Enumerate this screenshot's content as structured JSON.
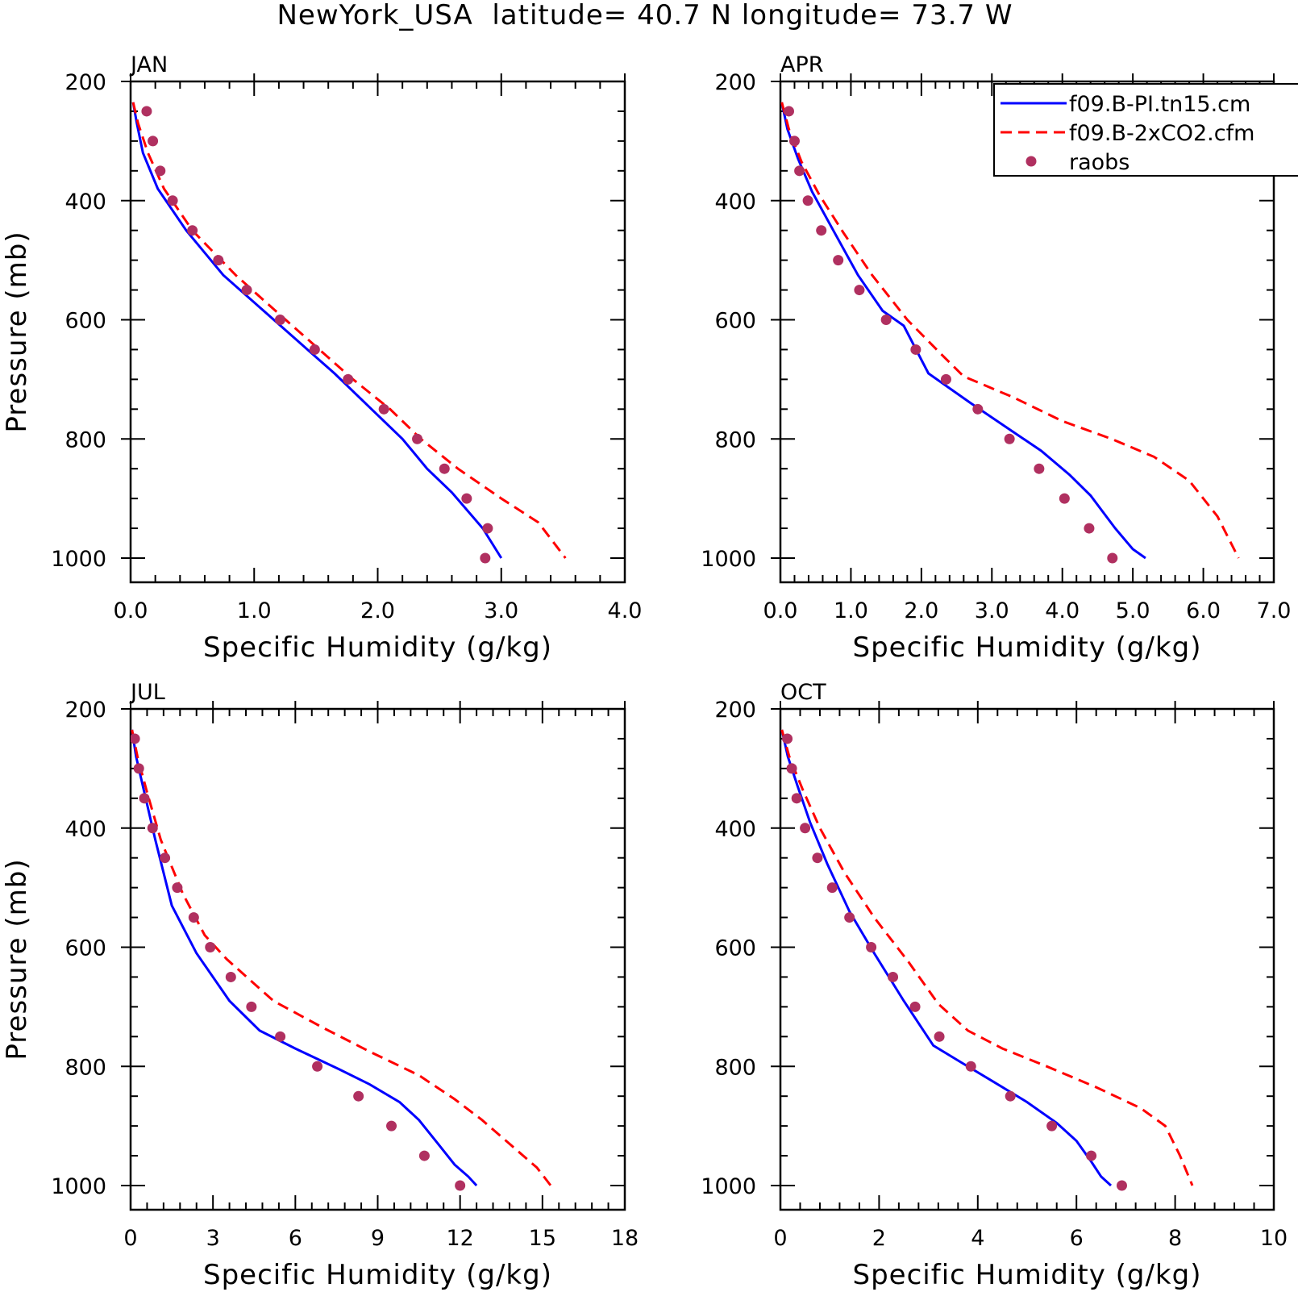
{
  "figure": {
    "title": "NewYork_USA  latitude= 40.7 N longitude= 73.7 W"
  },
  "legend": {
    "items": [
      {
        "label": "f09.B-PI.tn15.cm",
        "color": "#0000ff",
        "style": "solid"
      },
      {
        "label": "f09.B-2xCO2.cfm",
        "color": "#ff0000",
        "style": "dashed"
      },
      {
        "label": "raobs",
        "color": "#b03060",
        "style": "marker"
      }
    ]
  },
  "chart_data": [
    {
      "type": "line",
      "title": "JAN",
      "xlabel": "Specific Humidity (g/kg)",
      "ylabel": "Pressure (mb)",
      "xlim": [
        0,
        4
      ],
      "ylim": [
        1000,
        200
      ],
      "xticks": [
        "0.0",
        "1.0",
        "2.0",
        "3.0",
        "4.0"
      ],
      "yticks": [
        "200",
        "400",
        "600",
        "800",
        "1000"
      ],
      "series": [
        {
          "name": "f09.B-PI.tn15.cm",
          "color": "#0000ff",
          "style": "solid",
          "x": [
            0.02,
            0.05,
            0.1,
            0.22,
            0.45,
            0.75,
            1.05,
            1.35,
            1.65,
            1.95,
            2.2,
            2.4,
            2.6,
            2.85,
            3.0
          ],
          "y": [
            235,
            270,
            320,
            380,
            450,
            525,
            580,
            635,
            690,
            750,
            800,
            850,
            890,
            950,
            1000
          ]
        },
        {
          "name": "f09.B-2xCO2.cfm",
          "color": "#ff0000",
          "style": "dashed",
          "x": [
            0.02,
            0.06,
            0.14,
            0.27,
            0.5,
            0.85,
            1.2,
            1.5,
            1.8,
            2.1,
            2.35,
            2.65,
            3.0,
            3.3,
            3.52
          ],
          "y": [
            235,
            270,
            320,
            380,
            450,
            525,
            590,
            645,
            700,
            750,
            800,
            850,
            900,
            940,
            1000
          ]
        },
        {
          "name": "raobs",
          "color": "#b03060",
          "style": "marker",
          "x": [
            0.13,
            0.18,
            0.24,
            0.34,
            0.5,
            0.71,
            0.94,
            1.21,
            1.49,
            1.76,
            2.05,
            2.32,
            2.54,
            2.72,
            2.89,
            2.87
          ],
          "y": [
            250,
            300,
            350,
            400,
            450,
            500,
            550,
            600,
            650,
            700,
            750,
            800,
            850,
            900,
            950,
            1000
          ]
        }
      ]
    },
    {
      "type": "line",
      "title": "APR",
      "xlabel": "Specific Humidity (g/kg)",
      "ylabel": "",
      "xlim": [
        0,
        7
      ],
      "ylim": [
        1000,
        200
      ],
      "xticks": [
        "0.0",
        "1.0",
        "2.0",
        "3.0",
        "4.0",
        "5.0",
        "6.0",
        "7.0"
      ],
      "yticks": [
        "200",
        "400",
        "600",
        "800",
        "1000"
      ],
      "series": [
        {
          "name": "f09.B-PI.tn15.cm",
          "color": "#0000ff",
          "style": "solid",
          "x": [
            0.02,
            0.1,
            0.25,
            0.45,
            0.75,
            1.1,
            1.45,
            1.75,
            2.1,
            2.7,
            3.2,
            3.7,
            4.1,
            4.4,
            4.75,
            5.0,
            5.18
          ],
          "y": [
            235,
            280,
            330,
            385,
            450,
            525,
            585,
            610,
            690,
            740,
            780,
            820,
            860,
            895,
            950,
            985,
            1000
          ]
        },
        {
          "name": "f09.B-2xCO2.cfm",
          "color": "#ff0000",
          "style": "dashed",
          "x": [
            0.02,
            0.12,
            0.3,
            0.55,
            0.9,
            1.3,
            1.8,
            2.3,
            2.6,
            3.3,
            4.0,
            4.7,
            5.3,
            5.8,
            6.2,
            6.5
          ],
          "y": [
            235,
            280,
            335,
            390,
            455,
            525,
            600,
            660,
            695,
            730,
            770,
            800,
            830,
            870,
            930,
            1000
          ]
        },
        {
          "name": "raobs",
          "color": "#b03060",
          "style": "marker",
          "x": [
            0.12,
            0.2,
            0.27,
            0.39,
            0.58,
            0.82,
            1.12,
            1.5,
            1.92,
            2.35,
            2.8,
            3.25,
            3.67,
            4.03,
            4.38,
            4.71
          ],
          "y": [
            250,
            300,
            350,
            400,
            450,
            500,
            550,
            600,
            650,
            700,
            750,
            800,
            850,
            900,
            950,
            1000
          ]
        }
      ]
    },
    {
      "type": "line",
      "title": "JUL",
      "xlabel": "Specific Humidity (g/kg)",
      "ylabel": "Pressure (mb)",
      "xlim": [
        0,
        18
      ],
      "ylim": [
        1000,
        200
      ],
      "xticks": [
        "0",
        "3",
        "6",
        "9",
        "12",
        "15",
        "18"
      ],
      "yticks": [
        "200",
        "400",
        "600",
        "800",
        "1000"
      ],
      "series": [
        {
          "name": "f09.B-PI.tn15.cm",
          "color": "#0000ff",
          "style": "solid",
          "x": [
            0.05,
            0.2,
            0.5,
            0.9,
            1.5,
            2.4,
            3.6,
            4.7,
            6.0,
            7.6,
            8.7,
            9.8,
            10.5,
            11.2,
            11.8,
            12.3,
            12.6
          ],
          "y": [
            235,
            280,
            340,
            420,
            530,
            610,
            690,
            740,
            770,
            805,
            830,
            860,
            890,
            930,
            965,
            985,
            1000
          ]
        },
        {
          "name": "f09.B-2xCO2.cfm",
          "color": "#ff0000",
          "style": "dashed",
          "x": [
            0.05,
            0.25,
            0.6,
            1.1,
            1.9,
            2.7,
            3.5,
            5.2,
            7.0,
            8.7,
            10.5,
            11.8,
            12.8,
            13.8,
            14.8,
            15.3
          ],
          "y": [
            235,
            280,
            340,
            420,
            510,
            580,
            620,
            690,
            735,
            775,
            815,
            855,
            890,
            930,
            970,
            1000
          ]
        },
        {
          "name": "raobs",
          "color": "#b03060",
          "style": "marker",
          "x": [
            0.15,
            0.3,
            0.5,
            0.8,
            1.25,
            1.7,
            2.3,
            2.9,
            3.65,
            4.4,
            5.45,
            6.8,
            8.3,
            9.5,
            10.7,
            12.0
          ],
          "y": [
            250,
            300,
            350,
            400,
            450,
            500,
            550,
            600,
            650,
            700,
            750,
            800,
            850,
            900,
            950,
            1000
          ]
        }
      ]
    },
    {
      "type": "line",
      "title": "OCT",
      "xlabel": "Specific Humidity (g/kg)",
      "ylabel": "",
      "xlim": [
        0,
        10
      ],
      "ylim": [
        1000,
        200
      ],
      "xticks": [
        "0",
        "2",
        "4",
        "6",
        "8",
        "10"
      ],
      "yticks": [
        "200",
        "400",
        "600",
        "800",
        "1000"
      ],
      "series": [
        {
          "name": "f09.B-PI.tn15.cm",
          "color": "#0000ff",
          "style": "solid",
          "x": [
            0.03,
            0.15,
            0.35,
            0.6,
            0.95,
            1.4,
            1.9,
            2.5,
            3.1,
            3.7,
            4.3,
            5.0,
            5.6,
            6.0,
            6.3,
            6.5,
            6.7
          ],
          "y": [
            235,
            280,
            330,
            390,
            460,
            540,
            610,
            690,
            765,
            795,
            825,
            860,
            895,
            925,
            960,
            985,
            1000
          ]
        },
        {
          "name": "f09.B-2xCO2.cfm",
          "color": "#ff0000",
          "style": "dashed",
          "x": [
            0.03,
            0.18,
            0.45,
            0.8,
            1.3,
            1.9,
            2.6,
            3.2,
            3.8,
            4.5,
            5.4,
            6.4,
            7.3,
            7.8,
            8.1,
            8.35
          ],
          "y": [
            235,
            280,
            335,
            400,
            475,
            550,
            625,
            695,
            740,
            770,
            800,
            835,
            870,
            900,
            950,
            1000
          ]
        },
        {
          "name": "raobs",
          "color": "#b03060",
          "style": "marker",
          "x": [
            0.14,
            0.23,
            0.33,
            0.5,
            0.75,
            1.05,
            1.4,
            1.84,
            2.28,
            2.73,
            3.22,
            3.86,
            4.66,
            5.5,
            6.3,
            6.92
          ],
          "y": [
            250,
            300,
            350,
            400,
            450,
            500,
            550,
            600,
            650,
            700,
            750,
            800,
            850,
            900,
            950,
            1000
          ]
        }
      ]
    }
  ]
}
